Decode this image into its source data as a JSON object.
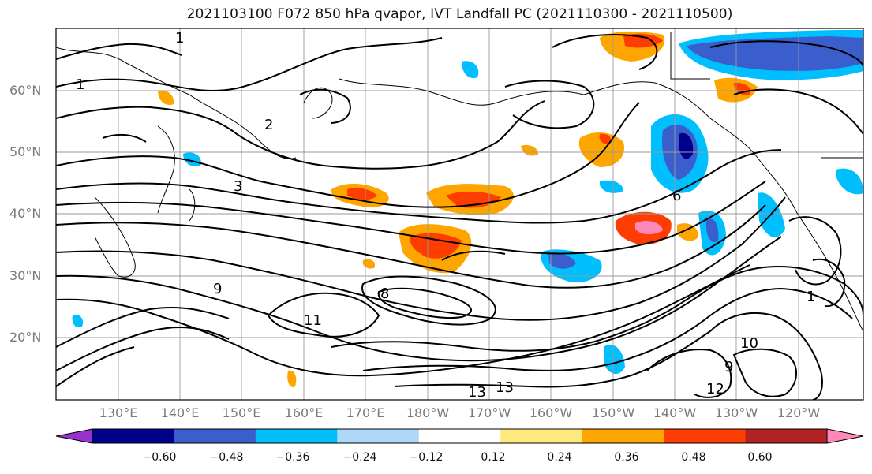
{
  "title": "2021103100 F072 850 hPa qvapor, IVT Landfall PC (2021110300 - 2021110500)",
  "lat_labels": [
    "60°N",
    "50°N",
    "40°N",
    "30°N",
    "20°N"
  ],
  "lon_labels": [
    "130°E",
    "140°E",
    "150°E",
    "160°E",
    "170°E",
    "180°W",
    "170°W",
    "160°W",
    "150°W",
    "140°W",
    "130°W",
    "120°W"
  ],
  "contour_labels": [
    "1",
    "1",
    "2",
    "3",
    "6",
    "8",
    "9",
    "9",
    "10",
    "11",
    "12",
    "13",
    "13",
    "1"
  ],
  "colorbar": {
    "colors": [
      "#9932cc",
      "#00008b",
      "#3a5fcd",
      "#00bfff",
      "#add8f7",
      "#ffffff",
      "#ffe97f",
      "#ffa500",
      "#ff3d00",
      "#b22222",
      "#ff88bb"
    ],
    "tick_labels": [
      "−0.60",
      "−0.48",
      "−0.36",
      "−0.24",
      "−0.12",
      "0.12",
      "0.24",
      "0.36",
      "0.48",
      "0.60"
    ]
  }
}
